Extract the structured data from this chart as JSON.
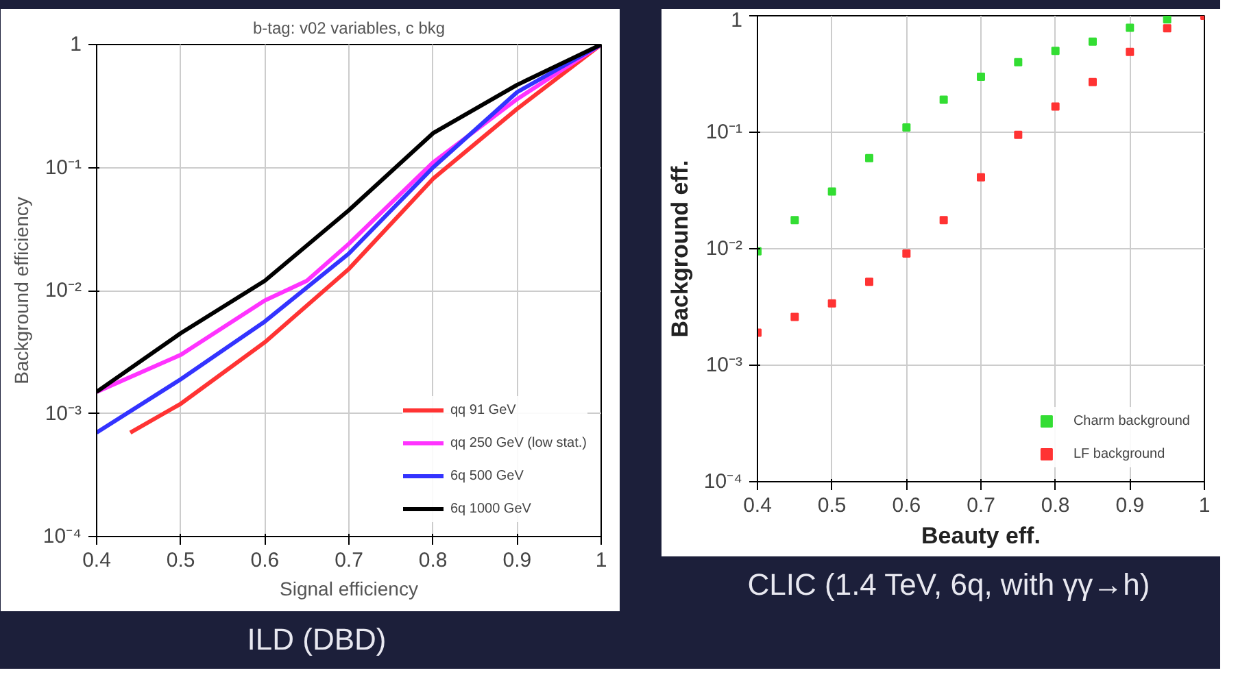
{
  "chart_data": [
    {
      "type": "line",
      "title": "b-tag: v02 variables, c bkg",
      "xlabel": "Signal efficiency",
      "ylabel": "Background efficiency",
      "log": "y",
      "grid": true,
      "legend": "bottom right",
      "line_style": "solid",
      "marker": "none",
      "xlim": [
        0.4,
        1.0
      ],
      "xticks": [
        0.4,
        0.5,
        0.6,
        0.7,
        0.8,
        0.9,
        1
      ],
      "ylim": [
        0.0001,
        1
      ],
      "yticks": [
        {
          "value": 0.0001,
          "label": "10⁻⁴"
        },
        {
          "value": 0.001,
          "label": "10⁻³"
        },
        {
          "value": 0.01,
          "label": "10⁻²"
        },
        {
          "value": 0.1,
          "label": "10⁻¹"
        },
        1
      ],
      "annotations": [
        "ILD (DBD)"
      ],
      "series": [
        {
          "name": "qq 91 GeV",
          "color": "#ff3333",
          "x": [
            0.44,
            0.5,
            0.6,
            0.7,
            0.8,
            0.9,
            1.0
          ],
          "values": [
            0.0007,
            0.0012,
            0.0038,
            0.015,
            0.081,
            0.3,
            1
          ]
        },
        {
          "name": "qq 250 GeV (low stat.)",
          "color": "#ff33ff",
          "x": [
            0.4,
            0.5,
            0.6,
            0.65,
            0.7,
            0.8,
            0.9,
            1.0
          ],
          "values": [
            0.0015,
            0.003,
            0.0083,
            0.012,
            0.024,
            0.11,
            0.36,
            1
          ]
        },
        {
          "name": "6q 500 GeV",
          "color": "#3333ff",
          "x": [
            0.4,
            0.5,
            0.6,
            0.7,
            0.8,
            0.9,
            1.0
          ],
          "values": [
            0.0007,
            0.0019,
            0.0056,
            0.02,
            0.1,
            0.41,
            1
          ]
        },
        {
          "name": "6q 1000 GeV",
          "color": "#000000",
          "x": [
            0.4,
            0.5,
            0.6,
            0.7,
            0.8,
            0.9,
            1.0
          ],
          "values": [
            0.0015,
            0.0045,
            0.012,
            0.045,
            0.19,
            0.47,
            1
          ]
        }
      ]
    },
    {
      "type": "scatter",
      "xlabel": "Beauty eff.",
      "ylabel": "Background eff.",
      "log": "y",
      "grid": true,
      "legend": "bottom right",
      "marker": "square",
      "xlim": [
        0.4,
        1.0
      ],
      "xticks": [
        0.4,
        0.5,
        0.6,
        0.7,
        0.8,
        0.9,
        1
      ],
      "ylim": [
        0.0001,
        1
      ],
      "yticks": [
        {
          "value": 0.0001,
          "label": "10⁻⁴"
        },
        {
          "value": 0.001,
          "label": "10⁻³"
        },
        {
          "value": 0.01,
          "label": "10⁻²"
        },
        {
          "value": 0.1,
          "label": "10⁻¹"
        },
        1
      ],
      "annotations": [
        "CLIC (1.4 TeV, 6q, with γγ→h)"
      ],
      "x": [
        0.4,
        0.45,
        0.5,
        0.55,
        0.6,
        0.65,
        0.7,
        0.75,
        0.8,
        0.85,
        0.9,
        0.95,
        1.0
      ],
      "series": [
        {
          "name": "Charm background",
          "color": "#33dd33",
          "values": [
            0.0095,
            0.0176,
            0.031,
            0.06,
            0.11,
            0.19,
            0.3,
            0.4,
            0.5,
            0.6,
            0.79,
            0.93,
            null
          ]
        },
        {
          "name": "LF background",
          "color": "#ff3333",
          "values": [
            0.0019,
            0.0026,
            0.0034,
            0.0052,
            0.0091,
            0.0176,
            0.041,
            0.095,
            0.166,
            0.27,
            0.49,
            0.78,
            1
          ]
        }
      ]
    }
  ]
}
